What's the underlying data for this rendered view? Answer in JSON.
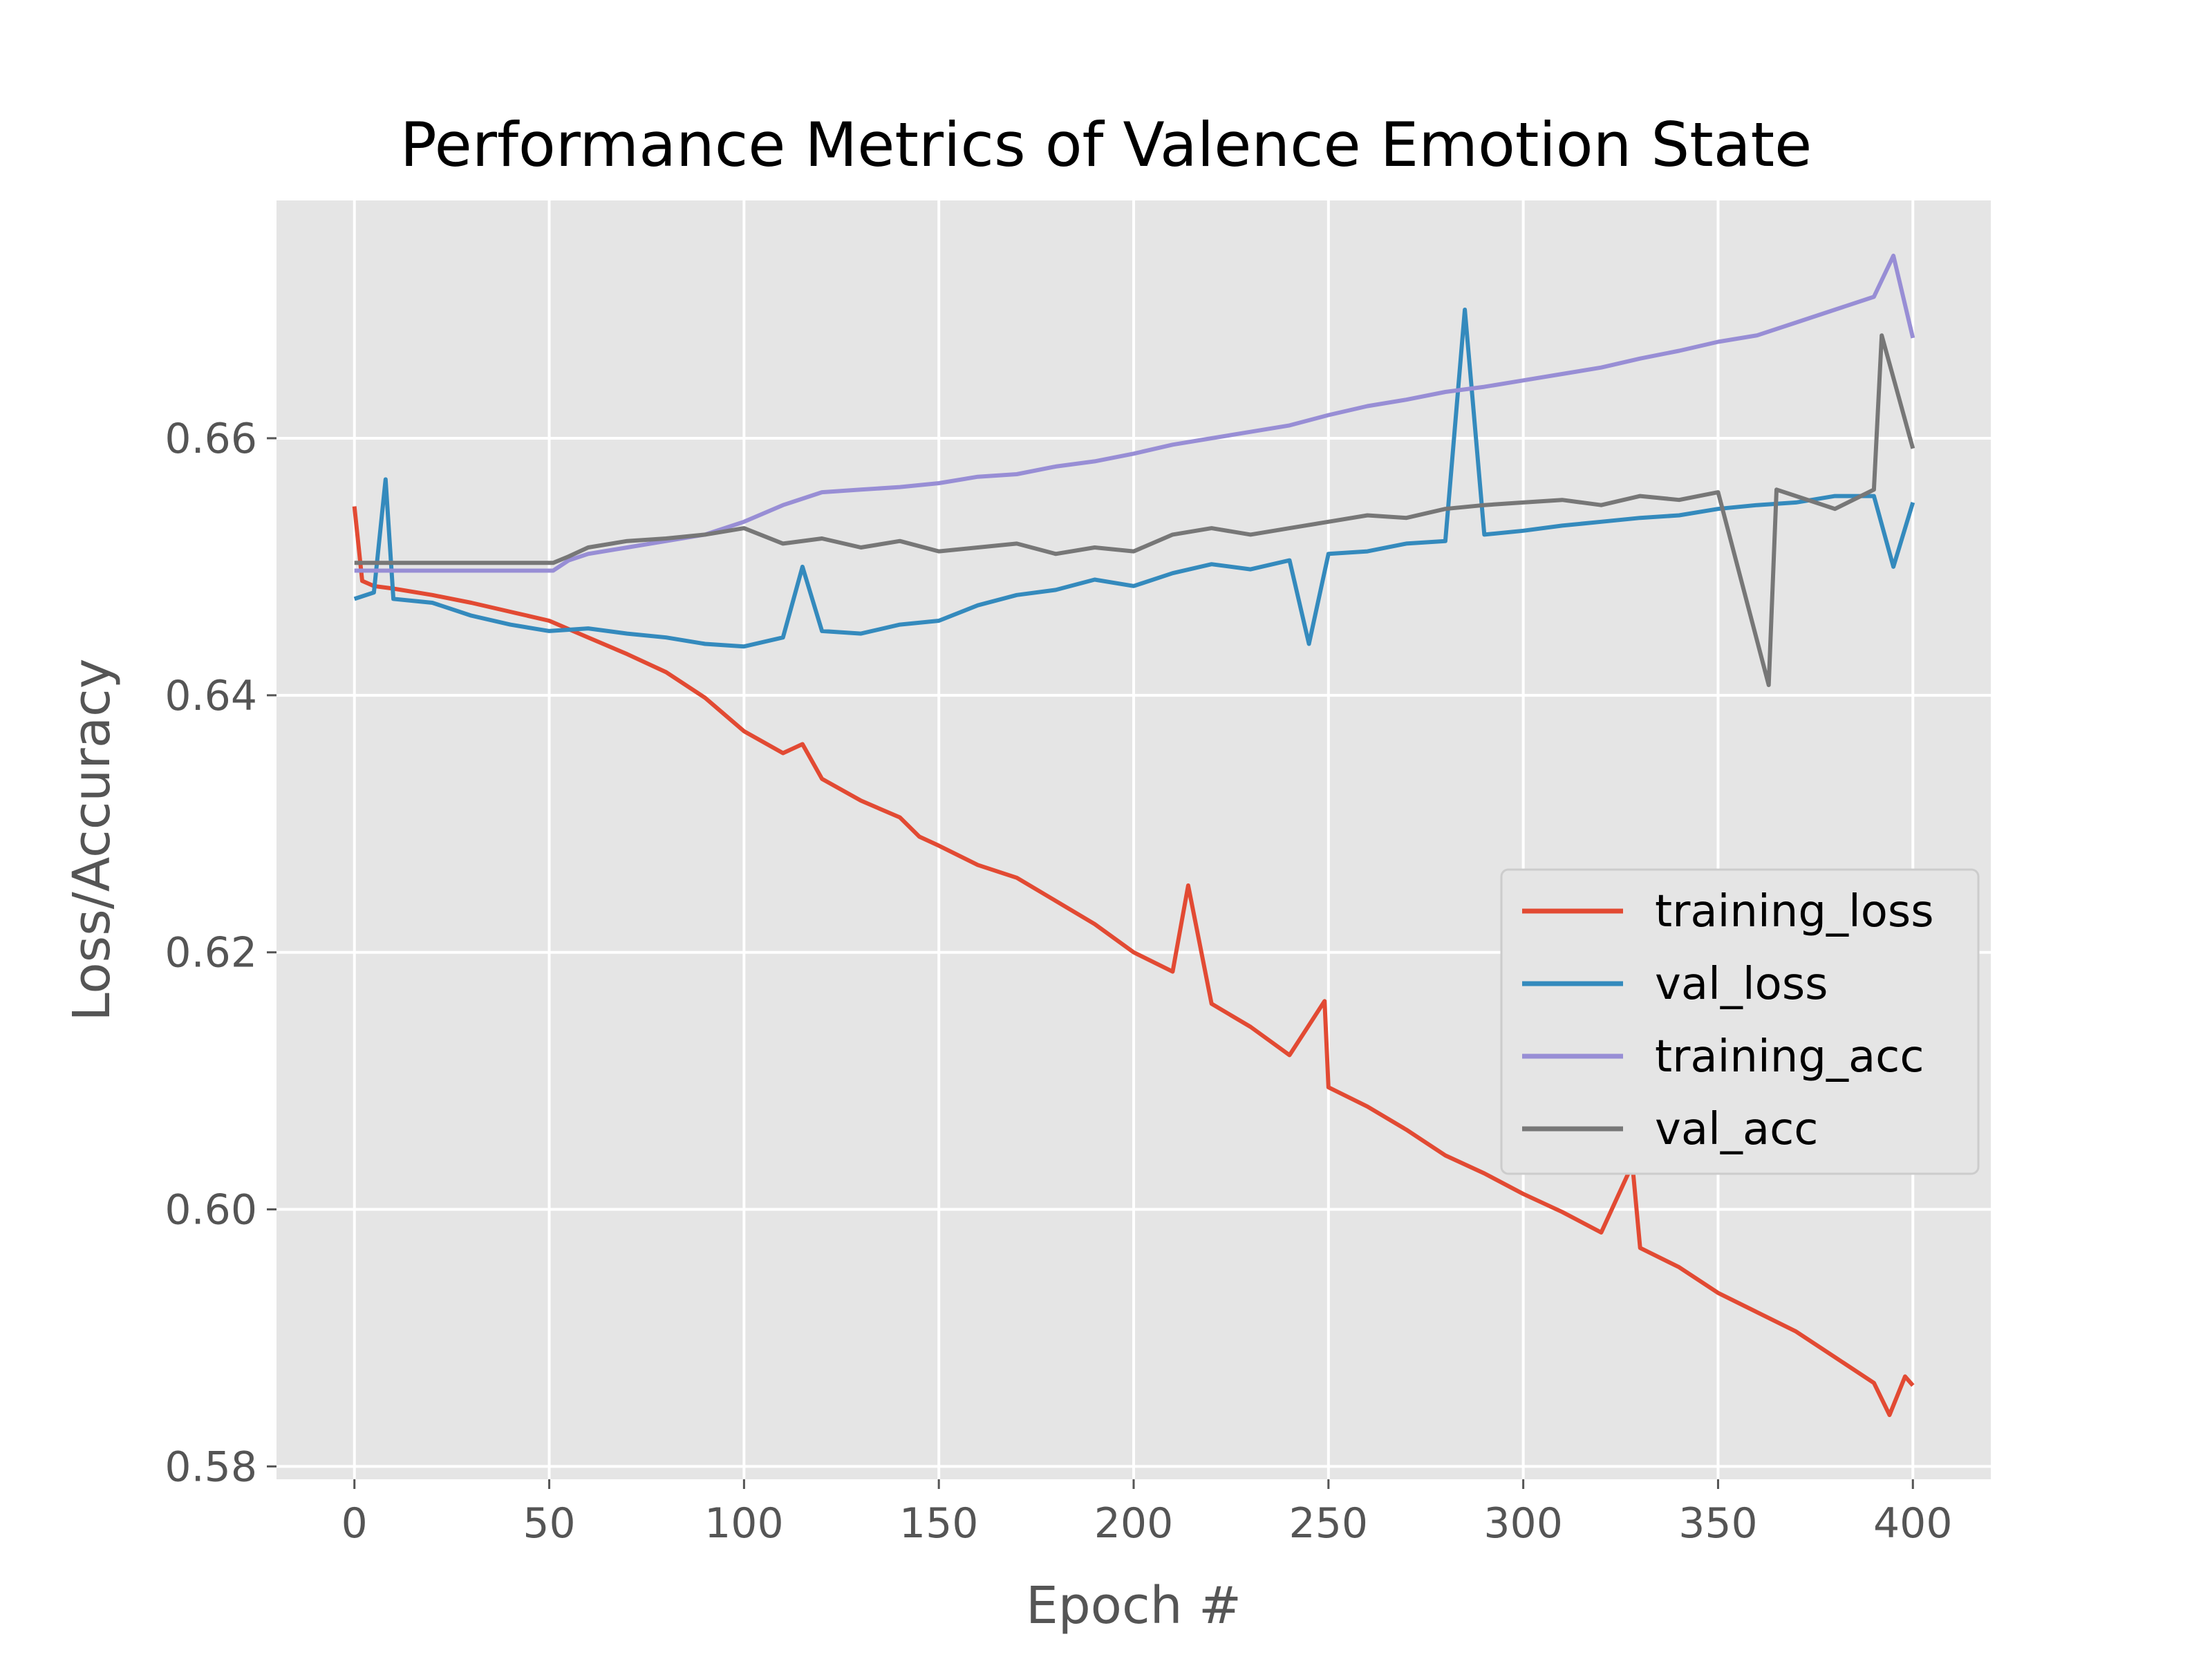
{
  "chart_data": {
    "type": "line",
    "title": "Performance Metrics of Valence Emotion State",
    "xlabel": "Epoch #",
    "ylabel": "Loss/Accuracy",
    "xlim": [
      -20,
      420
    ],
    "ylim": [
      0.579,
      0.6785
    ],
    "xticks": [
      0,
      50,
      100,
      150,
      200,
      250,
      300,
      350,
      400
    ],
    "xtick_labels": [
      "0",
      "50",
      "100",
      "150",
      "200",
      "250",
      "300",
      "350",
      "400"
    ],
    "yticks": [
      0.58,
      0.6,
      0.62,
      0.64,
      0.66
    ],
    "ytick_labels": [
      "0.58",
      "0.60",
      "0.62",
      "0.64",
      "0.66"
    ],
    "grid": true,
    "legend_position": "center-right",
    "style": "ggplot",
    "background_color": "#E5E5E5",
    "grid_color": "#FFFFFF",
    "series": [
      {
        "name": "training_loss",
        "color": "#E24A33",
        "x": [
          0,
          2,
          5,
          10,
          20,
          30,
          40,
          50,
          60,
          70,
          80,
          90,
          95,
          100,
          110,
          115,
          120,
          130,
          140,
          145,
          150,
          160,
          170,
          180,
          190,
          200,
          210,
          214,
          220,
          230,
          240,
          249,
          250,
          260,
          270,
          280,
          290,
          300,
          310,
          320,
          328,
          330,
          340,
          350,
          360,
          370,
          380,
          390,
          394,
          398,
          400
        ],
        "y": [
          0.6547,
          0.6489,
          0.6485,
          0.6483,
          0.6478,
          0.6472,
          0.6465,
          0.6458,
          0.6445,
          0.6432,
          0.6418,
          0.6398,
          0.6385,
          0.6372,
          0.6355,
          0.6362,
          0.6335,
          0.6318,
          0.6305,
          0.629,
          0.6283,
          0.6268,
          0.6258,
          0.624,
          0.6222,
          0.62,
          0.6185,
          0.6252,
          0.616,
          0.6142,
          0.612,
          0.6162,
          0.6095,
          0.608,
          0.6062,
          0.6042,
          0.6028,
          0.6012,
          0.5998,
          0.5982,
          0.6035,
          0.597,
          0.5955,
          0.5935,
          0.592,
          0.5905,
          0.5885,
          0.5865,
          0.584,
          0.587,
          0.5863
        ]
      },
      {
        "name": "val_loss",
        "color": "#348ABD",
        "x": [
          0,
          5,
          8,
          10,
          20,
          30,
          40,
          50,
          60,
          70,
          80,
          90,
          100,
          110,
          115,
          120,
          130,
          140,
          150,
          160,
          170,
          180,
          190,
          200,
          210,
          220,
          230,
          240,
          245,
          250,
          260,
          270,
          280,
          285,
          290,
          300,
          310,
          320,
          330,
          340,
          350,
          360,
          370,
          380,
          390,
          395,
          400
        ],
        "y": [
          0.6475,
          0.648,
          0.6568,
          0.6475,
          0.6472,
          0.6462,
          0.6455,
          0.645,
          0.6452,
          0.6448,
          0.6445,
          0.644,
          0.6438,
          0.6445,
          0.65,
          0.645,
          0.6448,
          0.6455,
          0.6458,
          0.647,
          0.6478,
          0.6482,
          0.649,
          0.6485,
          0.6495,
          0.6502,
          0.6498,
          0.6505,
          0.644,
          0.651,
          0.6512,
          0.6518,
          0.652,
          0.67,
          0.6525,
          0.6528,
          0.6532,
          0.6535,
          0.6538,
          0.654,
          0.6545,
          0.6548,
          0.655,
          0.6555,
          0.6555,
          0.65,
          0.655
        ]
      },
      {
        "name": "training_acc",
        "color": "#988ED5",
        "x": [
          0,
          10,
          20,
          30,
          40,
          51,
          55,
          60,
          70,
          80,
          90,
          100,
          110,
          120,
          130,
          140,
          150,
          160,
          170,
          180,
          190,
          200,
          210,
          220,
          230,
          240,
          250,
          260,
          270,
          280,
          290,
          300,
          310,
          320,
          330,
          340,
          350,
          360,
          370,
          380,
          390,
          395,
          400
        ],
        "y": [
          0.6497,
          0.6497,
          0.6497,
          0.6497,
          0.6497,
          0.6497,
          0.6505,
          0.651,
          0.6515,
          0.652,
          0.6525,
          0.6535,
          0.6548,
          0.6558,
          0.656,
          0.6562,
          0.6565,
          0.657,
          0.6572,
          0.6578,
          0.6582,
          0.6588,
          0.6595,
          0.66,
          0.6605,
          0.661,
          0.6618,
          0.6625,
          0.663,
          0.6636,
          0.664,
          0.6645,
          0.665,
          0.6655,
          0.6662,
          0.6668,
          0.6675,
          0.668,
          0.669,
          0.67,
          0.671,
          0.6742,
          0.6678
        ]
      },
      {
        "name": "val_acc",
        "color": "#777777",
        "x": [
          0,
          10,
          20,
          30,
          40,
          51,
          55,
          60,
          70,
          80,
          90,
          100,
          110,
          120,
          130,
          140,
          150,
          160,
          170,
          180,
          190,
          200,
          210,
          220,
          230,
          240,
          250,
          260,
          270,
          280,
          290,
          300,
          310,
          320,
          330,
          340,
          350,
          363,
          365,
          370,
          380,
          390,
          392,
          400
        ],
        "y": [
          0.6503,
          0.6503,
          0.6503,
          0.6503,
          0.6503,
          0.6503,
          0.6508,
          0.6515,
          0.652,
          0.6522,
          0.6525,
          0.653,
          0.6518,
          0.6522,
          0.6515,
          0.652,
          0.6512,
          0.6515,
          0.6518,
          0.651,
          0.6515,
          0.6512,
          0.6525,
          0.653,
          0.6525,
          0.653,
          0.6535,
          0.654,
          0.6538,
          0.6545,
          0.6548,
          0.655,
          0.6552,
          0.6548,
          0.6555,
          0.6552,
          0.6558,
          0.6408,
          0.656,
          0.6555,
          0.6545,
          0.656,
          0.668,
          0.6592
        ]
      }
    ]
  }
}
